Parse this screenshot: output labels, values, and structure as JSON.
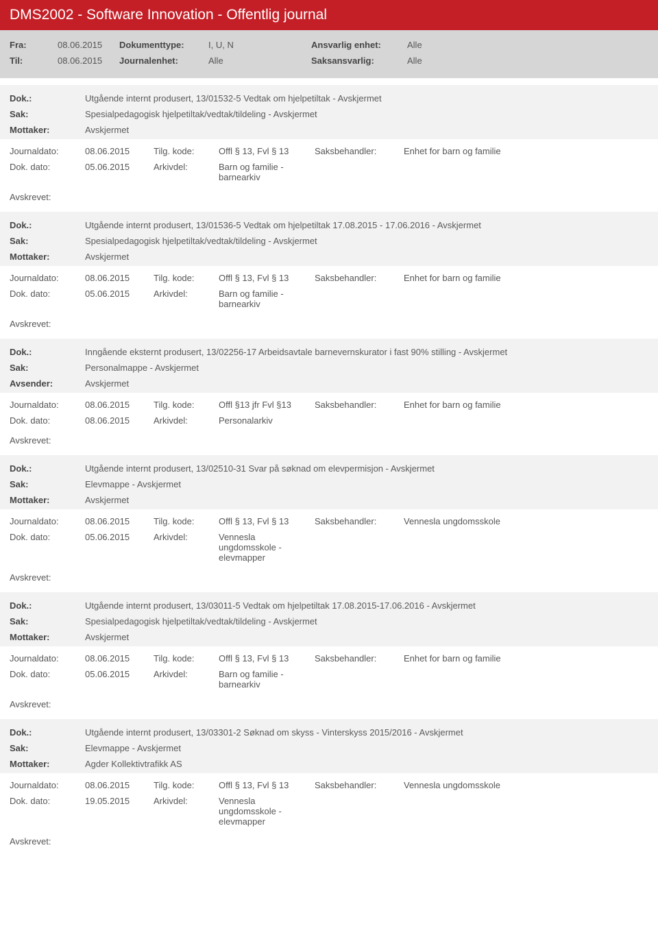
{
  "header": {
    "title": "DMS2002 - Software Innovation - Offentlig journal"
  },
  "filter": {
    "fra_label": "Fra:",
    "fra_value": "08.06.2015",
    "til_label": "Til:",
    "til_value": "08.06.2015",
    "doktype_label": "Dokumenttype:",
    "doktype_value": "I, U, N",
    "journalenhet_label": "Journalenhet:",
    "journalenhet_value": "Alle",
    "ansvarlig_label": "Ansvarlig enhet:",
    "ansvarlig_value": "Alle",
    "saksansvarlig_label": "Saksansvarlig:",
    "saksansvarlig_value": "Alle"
  },
  "labels": {
    "dok": "Dok.:",
    "sak": "Sak:",
    "mottaker": "Mottaker:",
    "avsender": "Avsender:",
    "journaldato": "Journaldato:",
    "dokdato": "Dok. dato:",
    "tilgkode": "Tilg. kode:",
    "arkivdel": "Arkivdel:",
    "saksbehandler": "Saksbehandler:",
    "avskrevet": "Avskrevet:"
  },
  "entries": [
    {
      "dok": "Utgående internt produsert, 13/01532-5 Vedtak om hjelpetiltak - Avskjermet",
      "sak": "Spesialpedagogisk hjelpetiltak/vedtak/tildeling - Avskjermet",
      "party_label": "Mottaker:",
      "party_value": "Avskjermet",
      "journaldato": "08.06.2015",
      "dokdato": "05.06.2015",
      "tilgkode": "Offl § 13, Fvl § 13",
      "arkivdel": "Barn og familie - barnearkiv",
      "saksbehandler": "Enhet for barn og familie"
    },
    {
      "dok": "Utgående internt produsert, 13/01536-5 Vedtak om hjelpetiltak 17.08.2015 - 17.06.2016 - Avskjermet",
      "sak": "Spesialpedagogisk hjelpetiltak/vedtak/tildeling - Avskjermet",
      "party_label": "Mottaker:",
      "party_value": "Avskjermet",
      "journaldato": "08.06.2015",
      "dokdato": "05.06.2015",
      "tilgkode": "Offl § 13, Fvl § 13",
      "arkivdel": "Barn og familie - barnearkiv",
      "saksbehandler": "Enhet for barn og familie"
    },
    {
      "dok": "Inngående eksternt produsert, 13/02256-17 Arbeidsavtale barnevernskurator i fast 90% stilling - Avskjermet",
      "sak": "Personalmappe - Avskjermet",
      "party_label": "Avsender:",
      "party_value": "Avskjermet",
      "journaldato": "08.06.2015",
      "dokdato": "08.06.2015",
      "tilgkode": "Offl §13 jfr Fvl §13",
      "arkivdel": "Personalarkiv",
      "saksbehandler": "Enhet for barn og familie"
    },
    {
      "dok": "Utgående internt produsert, 13/02510-31 Svar på søknad om elevpermisjon - Avskjermet",
      "sak": "Elevmappe - Avskjermet",
      "party_label": "Mottaker:",
      "party_value": "Avskjermet",
      "journaldato": "08.06.2015",
      "dokdato": "05.06.2015",
      "tilgkode": "Offl § 13, Fvl § 13",
      "arkivdel": "Vennesla ungdomsskole - elevmapper",
      "saksbehandler": "Vennesla ungdomsskole"
    },
    {
      "dok": "Utgående internt produsert, 13/03011-5 Vedtak om hjelpetiltak 17.08.2015-17.06.2016 - Avskjermet",
      "sak": "Spesialpedagogisk hjelpetiltak/vedtak/tildeling - Avskjermet",
      "party_label": "Mottaker:",
      "party_value": "Avskjermet",
      "journaldato": "08.06.2015",
      "dokdato": "05.06.2015",
      "tilgkode": "Offl § 13, Fvl § 13",
      "arkivdel": "Barn og familie - barnearkiv",
      "saksbehandler": "Enhet for barn og familie"
    },
    {
      "dok": "Utgående internt produsert, 13/03301-2 Søknad om skyss - Vinterskyss 2015/2016 - Avskjermet",
      "sak": "Elevmappe - Avskjermet",
      "party_label": "Mottaker:",
      "party_value": "Agder Kollektivtrafikk AS",
      "journaldato": "08.06.2015",
      "dokdato": "19.05.2015",
      "tilgkode": "Offl § 13, Fvl § 13",
      "arkivdel": "Vennesla ungdomsskole - elevmapper",
      "saksbehandler": "Vennesla ungdomsskole"
    }
  ]
}
